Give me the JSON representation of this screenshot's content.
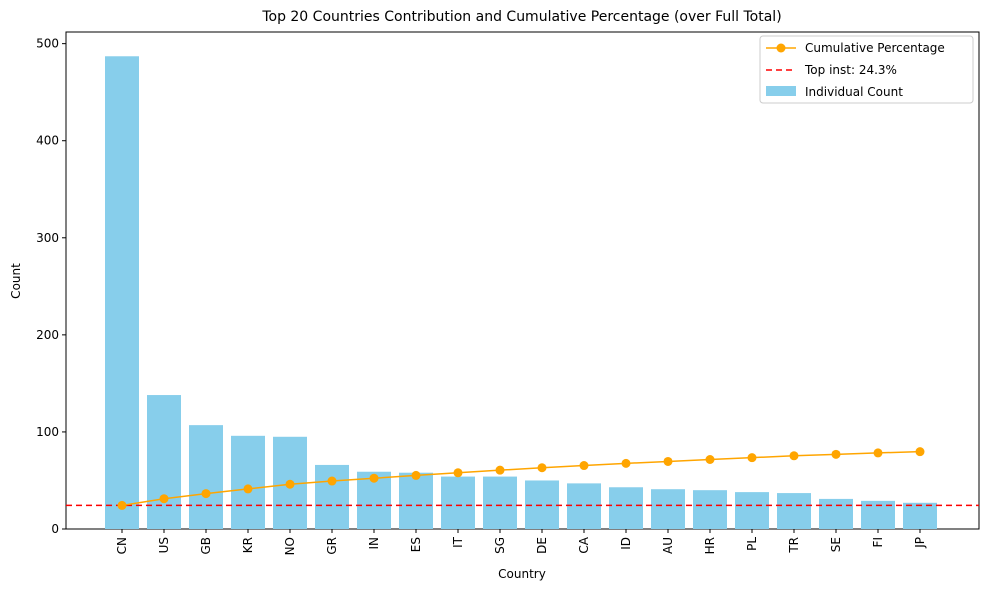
{
  "chart_data": {
    "type": "bar",
    "title": "Top 20 Countries Contribution and Cumulative Percentage (over Full Total)",
    "xlabel": "Country",
    "ylabel": "Count",
    "ylim": [
      0,
      512
    ],
    "yticks": [
      0,
      100,
      200,
      300,
      400,
      500
    ],
    "categories": [
      "CN",
      "US",
      "GB",
      "KR",
      "NO",
      "GR",
      "IN",
      "ES",
      "IT",
      "SG",
      "DE",
      "CA",
      "ID",
      "AU",
      "HR",
      "PL",
      "TR",
      "SE",
      "FI",
      "JP"
    ],
    "series": [
      {
        "name": "Individual Count",
        "kind": "bar",
        "color": "#87ceeb",
        "values": [
          487,
          138,
          107,
          96,
          95,
          66,
          59,
          58,
          54,
          54,
          50,
          47,
          43,
          41,
          40,
          38,
          37,
          31,
          29,
          27
        ]
      },
      {
        "name": "Cumulative Percentage",
        "kind": "line",
        "color": "#ffa500",
        "values": [
          24.3,
          31.2,
          36.5,
          41.3,
          46.1,
          49.4,
          52.3,
          55.2,
          57.9,
          60.6,
          63.1,
          65.4,
          67.6,
          69.6,
          71.6,
          73.5,
          75.4,
          76.9,
          78.4,
          79.7
        ]
      }
    ],
    "reference_line": {
      "label": "Top inst: 24.3%",
      "value": 24.3,
      "color": "#ff0000",
      "style": "dashed"
    },
    "legend": {
      "position": "top-right",
      "entries": [
        "Cumulative Percentage",
        "Top inst: 24.3%",
        "Individual Count"
      ]
    },
    "grid": false
  }
}
